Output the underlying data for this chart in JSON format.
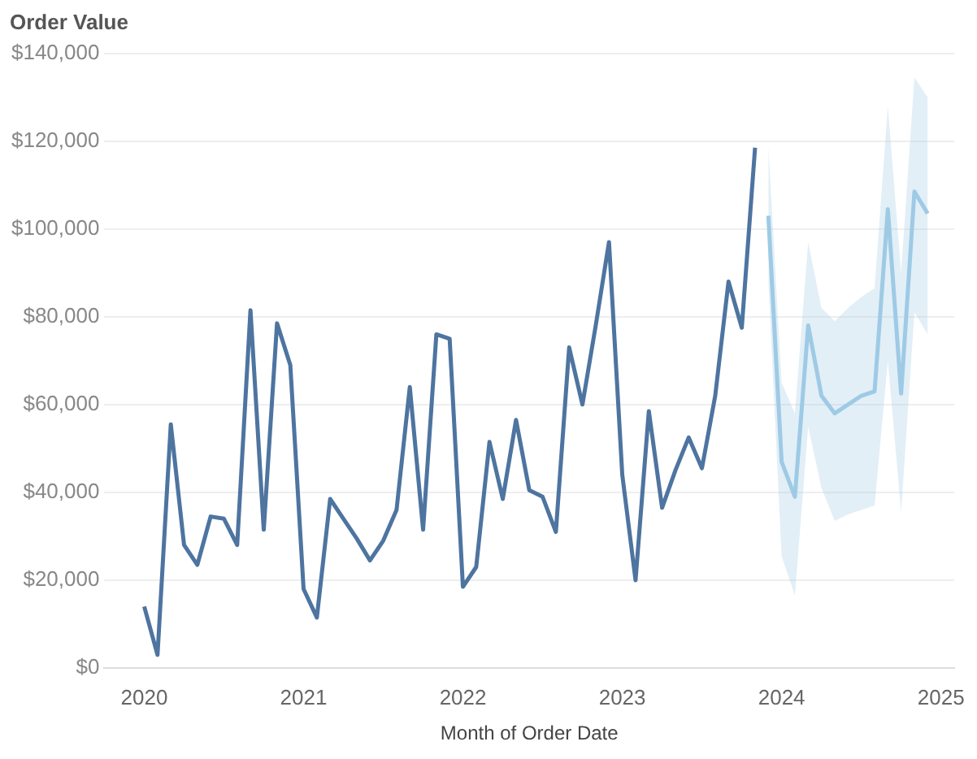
{
  "chart_data": {
    "type": "line",
    "ylabel": "Order Value",
    "xlabel": "Month of Order Date",
    "x": [
      "2020-01",
      "2020-02",
      "2020-03",
      "2020-04",
      "2020-05",
      "2020-06",
      "2020-07",
      "2020-08",
      "2020-09",
      "2020-10",
      "2020-11",
      "2020-12",
      "2021-01",
      "2021-02",
      "2021-03",
      "2021-04",
      "2021-05",
      "2021-06",
      "2021-07",
      "2021-08",
      "2021-09",
      "2021-10",
      "2021-11",
      "2021-12",
      "2022-01",
      "2022-02",
      "2022-03",
      "2022-04",
      "2022-05",
      "2022-06",
      "2022-07",
      "2022-08",
      "2022-09",
      "2022-10",
      "2022-11",
      "2022-12",
      "2023-01",
      "2023-02",
      "2023-03",
      "2023-04",
      "2023-05",
      "2023-06",
      "2023-07",
      "2023-08",
      "2023-09",
      "2023-10",
      "2023-11"
    ],
    "series": [
      {
        "color": "#4e74a0",
        "values": [
          14000,
          3000,
          55500,
          28000,
          23500,
          34500,
          34000,
          28000,
          81500,
          31500,
          78500,
          69000,
          18000,
          11500,
          38500,
          34000,
          29500,
          24500,
          29000,
          36000,
          64000,
          31500,
          76000,
          75000,
          18500,
          23000,
          51500,
          38500,
          56500,
          40500,
          39000,
          31000,
          73000,
          60000,
          78000,
          97000,
          44000,
          20000,
          58500,
          36500,
          45000,
          52500,
          45500,
          62000,
          88000,
          77500,
          118500
        ]
      },
      {
        "color": "#9ecae6",
        "x": [
          "2023-12",
          "2024-01",
          "2024-02",
          "2024-03",
          "2024-04",
          "2024-05",
          "2024-06",
          "2024-07",
          "2024-08",
          "2024-09",
          "2024-10",
          "2024-11",
          "2024-12"
        ],
        "values": [
          103000,
          47000,
          39000,
          78000,
          62000,
          58000,
          60000,
          62000,
          63000,
          104500,
          62500,
          108500,
          103500
        ],
        "lower": [
          88000,
          25500,
          16500,
          55000,
          41000,
          33500,
          35000,
          36000,
          37000,
          70000,
          35500,
          81000,
          76000
        ],
        "upper": [
          119000,
          65000,
          58000,
          97000,
          82000,
          79000,
          82000,
          84500,
          86500,
          128000,
          90000,
          134500,
          130000
        ]
      }
    ],
    "xlim": [
      "2019-10",
      "2025-02"
    ],
    "xticks": [
      {
        "value": "2020",
        "label": "2020"
      },
      {
        "value": "2021",
        "label": "2021"
      },
      {
        "value": "2022",
        "label": "2022"
      },
      {
        "value": "2023",
        "label": "2023"
      },
      {
        "value": "2024",
        "label": "2024"
      },
      {
        "value": "2025",
        "label": "2025"
      }
    ],
    "ylim": [
      0,
      140000
    ],
    "yticks": [
      {
        "value": 0,
        "label": "$0"
      },
      {
        "value": 20000,
        "label": "$20,000"
      },
      {
        "value": 40000,
        "label": "$40,000"
      },
      {
        "value": 60000,
        "label": "$60,000"
      },
      {
        "value": 80000,
        "label": "$80,000"
      },
      {
        "value": 100000,
        "label": "$100,000"
      },
      {
        "value": 120000,
        "label": "$120,000"
      },
      {
        "value": 140000,
        "label": "$140,000"
      }
    ],
    "grid": "y",
    "legend": false,
    "marker": "none",
    "line_style": "solid"
  }
}
